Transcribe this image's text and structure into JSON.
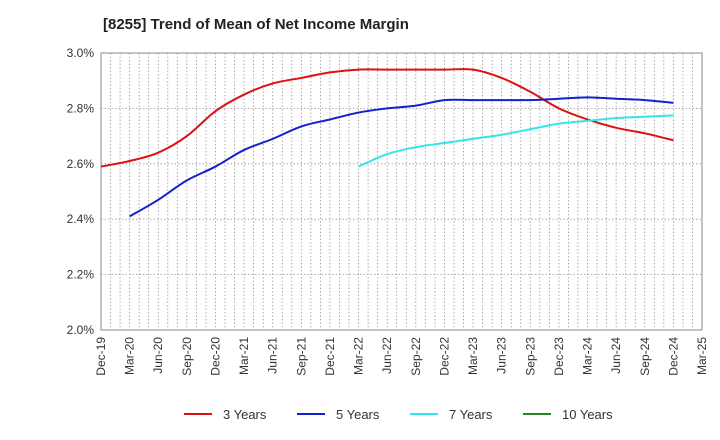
{
  "chart_data": {
    "type": "line",
    "title": "[8255]  Trend of Mean of Net Income Margin",
    "xlabel": "",
    "ylabel": "",
    "categories": [
      "Dec-19",
      "Mar-20",
      "Jun-20",
      "Sep-20",
      "Dec-20",
      "Mar-21",
      "Jun-21",
      "Sep-21",
      "Dec-21",
      "Mar-22",
      "Jun-22",
      "Sep-22",
      "Dec-22",
      "Mar-23",
      "Jun-23",
      "Sep-23",
      "Dec-23",
      "Mar-24",
      "Jun-24",
      "Sep-24",
      "Dec-24",
      "Mar-25"
    ],
    "ylim": [
      2.0,
      3.0
    ],
    "yticks": [
      "2.0%",
      "2.2%",
      "2.4%",
      "2.6%",
      "2.8%",
      "3.0%"
    ],
    "ytick_values": [
      2.0,
      2.2,
      2.4,
      2.6,
      2.8,
      3.0
    ],
    "grid": true,
    "legend_position": "bottom",
    "series": [
      {
        "name": "3 Years",
        "color": "#dd1111",
        "values": [
          2.59,
          2.61,
          2.64,
          2.7,
          2.79,
          2.85,
          2.89,
          2.91,
          2.93,
          2.94,
          2.94,
          2.94,
          2.94,
          2.94,
          2.91,
          2.86,
          2.8,
          2.76,
          2.73,
          2.71,
          2.685,
          null
        ]
      },
      {
        "name": "5 Years",
        "color": "#1122cc",
        "values": [
          null,
          2.41,
          2.47,
          2.54,
          2.59,
          2.65,
          2.69,
          2.735,
          2.76,
          2.785,
          2.8,
          2.81,
          2.83,
          2.83,
          2.83,
          2.83,
          2.835,
          2.84,
          2.835,
          2.83,
          2.82,
          null
        ]
      },
      {
        "name": "7 Years",
        "color": "#33e6e6",
        "values": [
          null,
          null,
          null,
          null,
          null,
          null,
          null,
          null,
          null,
          2.59,
          2.635,
          2.66,
          2.675,
          2.69,
          2.705,
          2.725,
          2.745,
          2.755,
          2.765,
          2.77,
          2.775,
          null
        ]
      },
      {
        "name": "10 Years",
        "color": "#228822",
        "values": [
          null,
          null,
          null,
          null,
          null,
          null,
          null,
          null,
          null,
          null,
          null,
          null,
          null,
          null,
          null,
          null,
          null,
          null,
          null,
          null,
          null,
          null
        ]
      }
    ]
  }
}
